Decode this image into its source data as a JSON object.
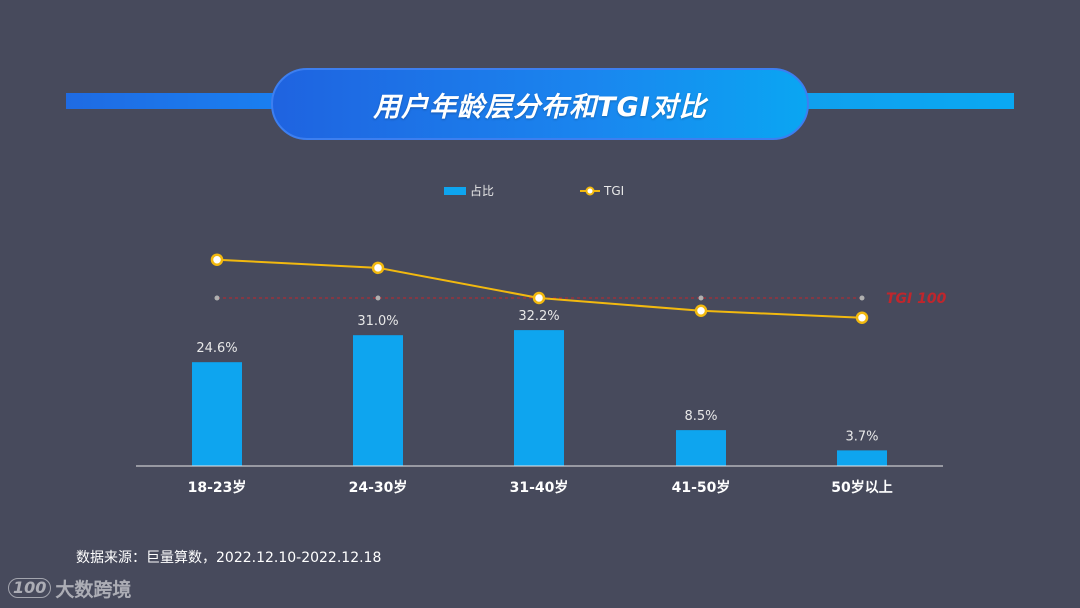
{
  "title": "用户年龄层分布和TGI对比",
  "source_text": "数据来源：巨量算数，2022.12.10-2022.12.18",
  "logo": {
    "mark": "100",
    "text": "大数跨境"
  },
  "colors": {
    "bar": "#0ea5ef",
    "line": "#f2b90f",
    "reference": "#c0262c",
    "axis": "#e8e8e8",
    "label": "#e8e8e8"
  },
  "chart_data": {
    "type": "bar",
    "categories": [
      "18-23岁",
      "24-30岁",
      "31-40岁",
      "41-50岁",
      "50岁以上"
    ],
    "series": [
      {
        "name": "占比",
        "type": "bar",
        "values": [
          24.6,
          31.0,
          32.2,
          8.5,
          3.7
        ],
        "labels": [
          "24.6%",
          "31.0%",
          "32.2%",
          "8.5%",
          "3.7%"
        ]
      },
      {
        "name": "TGI",
        "type": "line",
        "values": [
          133,
          126,
          100,
          89,
          83
        ]
      }
    ],
    "reference_line": {
      "label": "TGI 100",
      "value": 100
    },
    "legend_position": "top-center",
    "grid": false
  }
}
